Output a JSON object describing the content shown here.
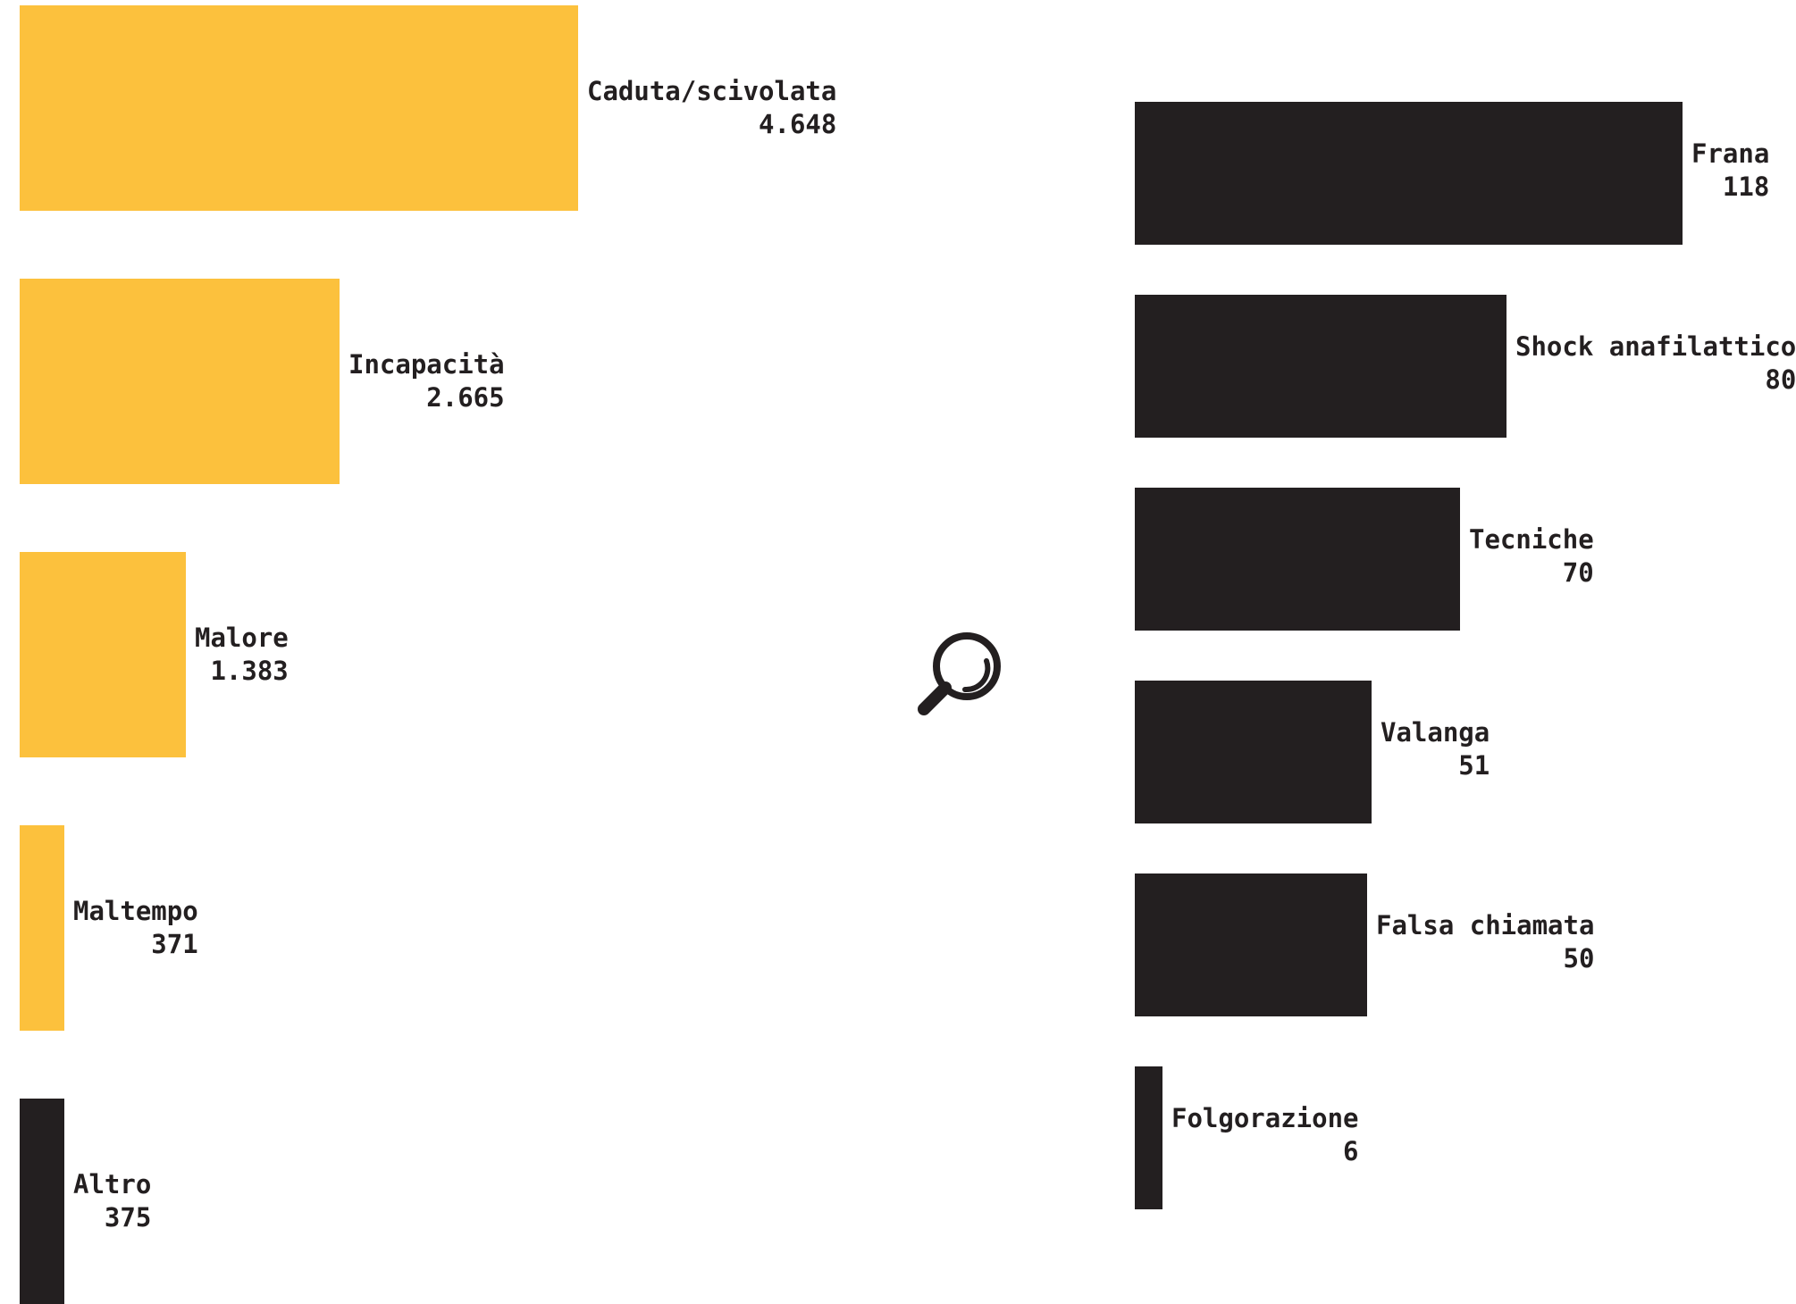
{
  "chart_data": [
    {
      "type": "bar",
      "orientation": "horizontal",
      "categories": [
        "Caduta/scivolata",
        "Incapacità",
        "Malore",
        "Maltempo",
        "Altro"
      ],
      "values": [
        4648,
        2665,
        1383,
        371,
        375
      ],
      "value_labels": [
        "4.648",
        "2.665",
        "1.383",
        "371",
        "375"
      ],
      "colors": [
        "#fcc13d",
        "#fcc13d",
        "#fcc13d",
        "#fcc13d",
        "#231f20"
      ],
      "xlim": [
        0,
        4648
      ],
      "grid": false,
      "legend": "none"
    },
    {
      "type": "bar",
      "orientation": "horizontal",
      "categories": [
        "Frana",
        "Shock anafilattico",
        "Tecniche",
        "Valanga",
        "Falsa chiamata",
        "Folgorazione"
      ],
      "values": [
        118,
        80,
        70,
        51,
        50,
        6
      ],
      "value_labels": [
        "118",
        "80",
        "70",
        "51",
        "50",
        "6"
      ],
      "colors": [
        "#231f20",
        "#231f20",
        "#231f20",
        "#231f20",
        "#231f20",
        "#231f20"
      ],
      "xlim": [
        0,
        118
      ],
      "grid": false,
      "legend": "none"
    }
  ],
  "zoom_icon": {
    "icon": "magnifier-icon",
    "color": "#231f20"
  }
}
